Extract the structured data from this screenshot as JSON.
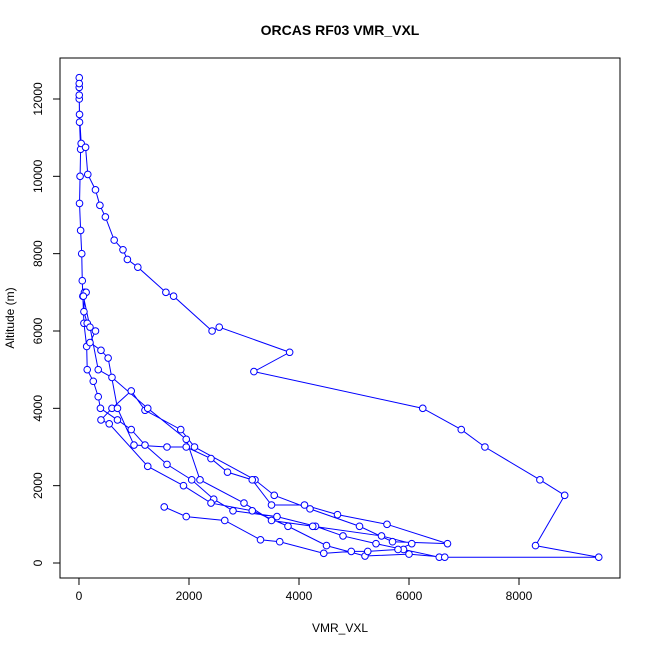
{
  "chart_data": {
    "type": "line",
    "title": "ORCAS RF03 VMR_VXL",
    "x_label": "VMR_VXL",
    "y_label": "Altitude (m)",
    "color": "#0000ff",
    "grid": false,
    "xlim": [
      -345,
      9836
    ],
    "ylim": [
      -388,
      13060
    ],
    "xticks": [
      0,
      2000,
      4000,
      6000,
      8000
    ],
    "yticks": [
      0,
      2000,
      4000,
      6000,
      8000,
      10000,
      12000
    ],
    "x": [
      6550,
      5900,
      5400,
      4800,
      4300,
      3600,
      2800,
      2450,
      2050,
      1600,
      1200,
      950,
      700,
      390,
      350,
      260,
      150,
      140,
      90,
      70,
      60,
      50,
      30,
      10,
      20,
      30,
      10,
      5,
      5,
      5,
      5,
      5,
      10,
      40,
      120,
      160,
      300,
      380,
      480,
      640,
      800,
      880,
      1070,
      1580,
      1720,
      2420,
      2550,
      3830,
      3180,
      6250,
      6950,
      7380,
      8380,
      8830,
      8300,
      9450,
      6650,
      6000,
      5200,
      4500,
      3800,
      3150,
      2400,
      1900,
      1250,
      550,
      400,
      600,
      950,
      1200,
      1850,
      2100,
      3200,
      3550,
      4200,
      5100,
      5700,
      6700,
      5600,
      4700,
      4100,
      3500,
      3150,
      2700,
      2400,
      1950,
      1600,
      1000,
      700,
      530,
      400,
      200,
      300,
      150,
      90,
      100,
      130,
      80,
      200,
      350,
      600,
      1250,
      1950,
      2200,
      3000,
      3500,
      4250,
      5500,
      6050,
      5800,
      5250,
      4950,
      4450,
      3650,
      3300,
      2650,
      1950,
      1550
    ],
    "values": [
      150,
      350,
      500,
      700,
      950,
      1200,
      1350,
      1650,
      2150,
      2550,
      3050,
      3450,
      3700,
      4000,
      4300,
      4700,
      5000,
      5600,
      6200,
      6900,
      7300,
      8000,
      8600,
      9300,
      10000,
      10700,
      11400,
      12000,
      12300,
      12550,
      12400,
      12100,
      11600,
      10850,
      10750,
      10050,
      9650,
      9250,
      8950,
      8350,
      8100,
      7850,
      7650,
      7000,
      6900,
      6000,
      6100,
      5450,
      4950,
      4000,
      3450,
      3000,
      2150,
      1750,
      450,
      150,
      150,
      230,
      180,
      450,
      950,
      1350,
      1550,
      2000,
      2500,
      3600,
      3700,
      4000,
      4450,
      3950,
      3450,
      3000,
      2150,
      1750,
      1400,
      950,
      550,
      500,
      1000,
      1250,
      1500,
      1500,
      2150,
      2350,
      2700,
      3000,
      3000,
      3050,
      4000,
      5300,
      5500,
      5700,
      6000,
      6200,
      6500,
      7000,
      7000,
      6900,
      6100,
      5000,
      4800,
      4000,
      3200,
      2150,
      1550,
      1100,
      950,
      700,
      500,
      350,
      300,
      300,
      250,
      550,
      600,
      1100,
      1200,
      1450
    ]
  }
}
